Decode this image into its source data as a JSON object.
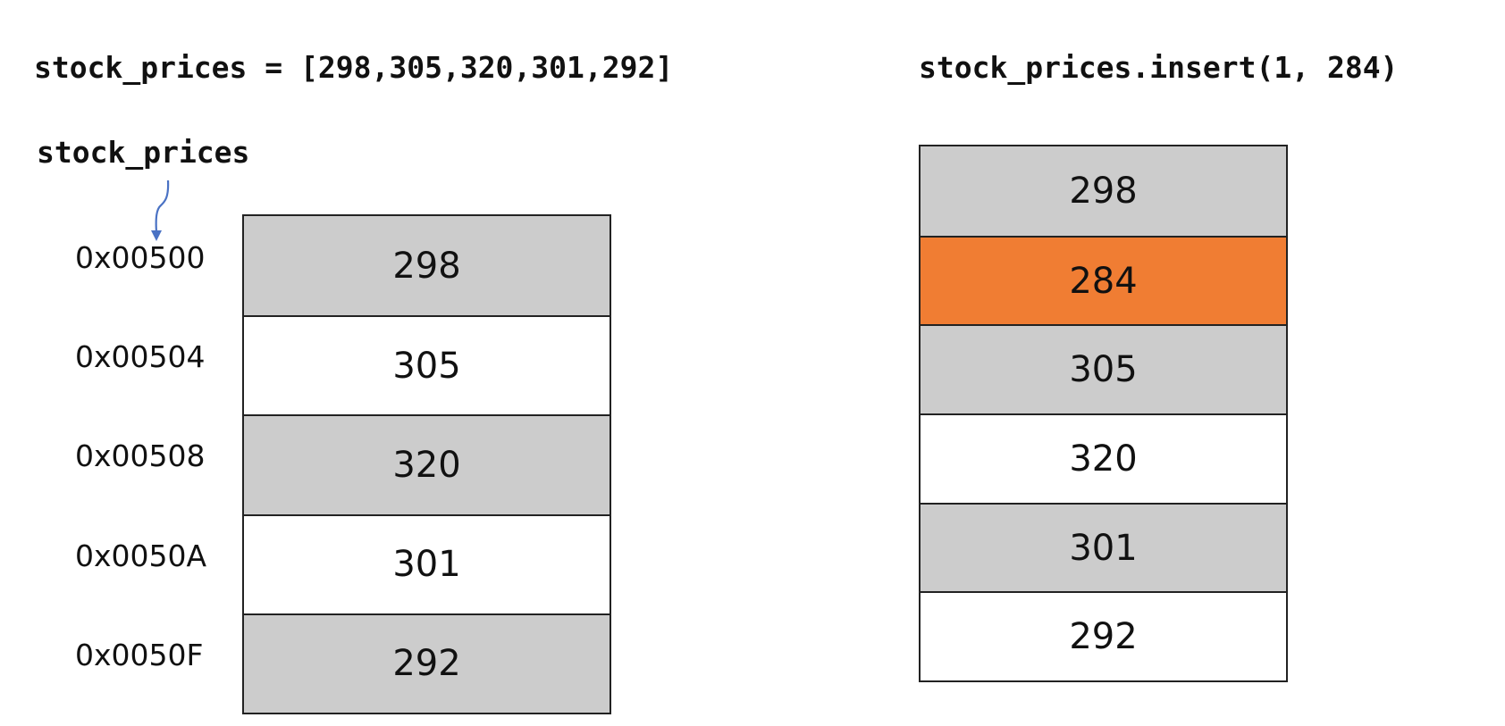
{
  "code": {
    "declaration": "stock_prices = [298,305,320,301,292]",
    "insert_call": "stock_prices.insert(1, 284)"
  },
  "variable_label": "stock_prices",
  "colors": {
    "cell_gray": "#cccccc",
    "cell_white": "#ffffff",
    "highlight": "#f07d33",
    "pointer_arrow": "#4a72c4",
    "border": "#222222"
  },
  "before": {
    "addresses": [
      "0x00500",
      "0x00504",
      "0x00508",
      "0x0050A",
      "0x0050F"
    ],
    "values": [
      "298",
      "305",
      "320",
      "301",
      "292"
    ]
  },
  "after": {
    "values": [
      "298",
      "284",
      "305",
      "320",
      "301",
      "292"
    ],
    "inserted_index": 1
  },
  "icons": {
    "pointer": "curved-down-arrow-icon"
  }
}
